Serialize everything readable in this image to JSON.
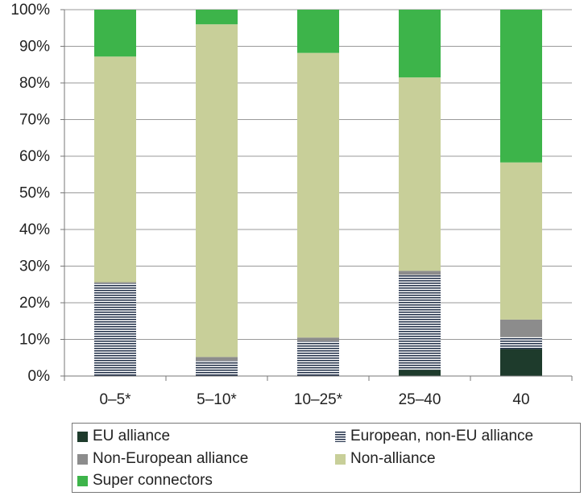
{
  "chart_data": {
    "type": "bar",
    "stacked": true,
    "title": "",
    "xlabel": "",
    "ylabel": "",
    "ylim": [
      0,
      100
    ],
    "y_ticks": [
      "0%",
      "10%",
      "20%",
      "30%",
      "40%",
      "50%",
      "60%",
      "70%",
      "80%",
      "90%",
      "100%"
    ],
    "categories": [
      "0–5*",
      "5–10*",
      "10–25*",
      "25–40",
      "40"
    ],
    "series": [
      {
        "name": "EU alliance",
        "color": "#1e3b2c",
        "pattern": "solid",
        "values": [
          0,
          0,
          0,
          1.7,
          7.4
        ]
      },
      {
        "name": "European, non-EU alliance",
        "color": "#1f2e47",
        "pattern": "horizontal-lines",
        "values": [
          25.3,
          4.2,
          9.5,
          25.9,
          3.2
        ]
      },
      {
        "name": "Non-European alliance",
        "color": "#8c8c8c",
        "pattern": "solid",
        "values": [
          0.3,
          1.0,
          1.0,
          1.1,
          4.8
        ]
      },
      {
        "name": "Non-alliance",
        "color": "#c8cf99",
        "pattern": "solid",
        "values": [
          61.6,
          90.8,
          77.7,
          52.8,
          42.9
        ]
      },
      {
        "name": "Super connectors",
        "color": "#3db44a",
        "pattern": "solid",
        "values": [
          12.8,
          4.0,
          11.8,
          18.5,
          41.7
        ]
      }
    ],
    "grid": true,
    "legend_position": "bottom"
  }
}
